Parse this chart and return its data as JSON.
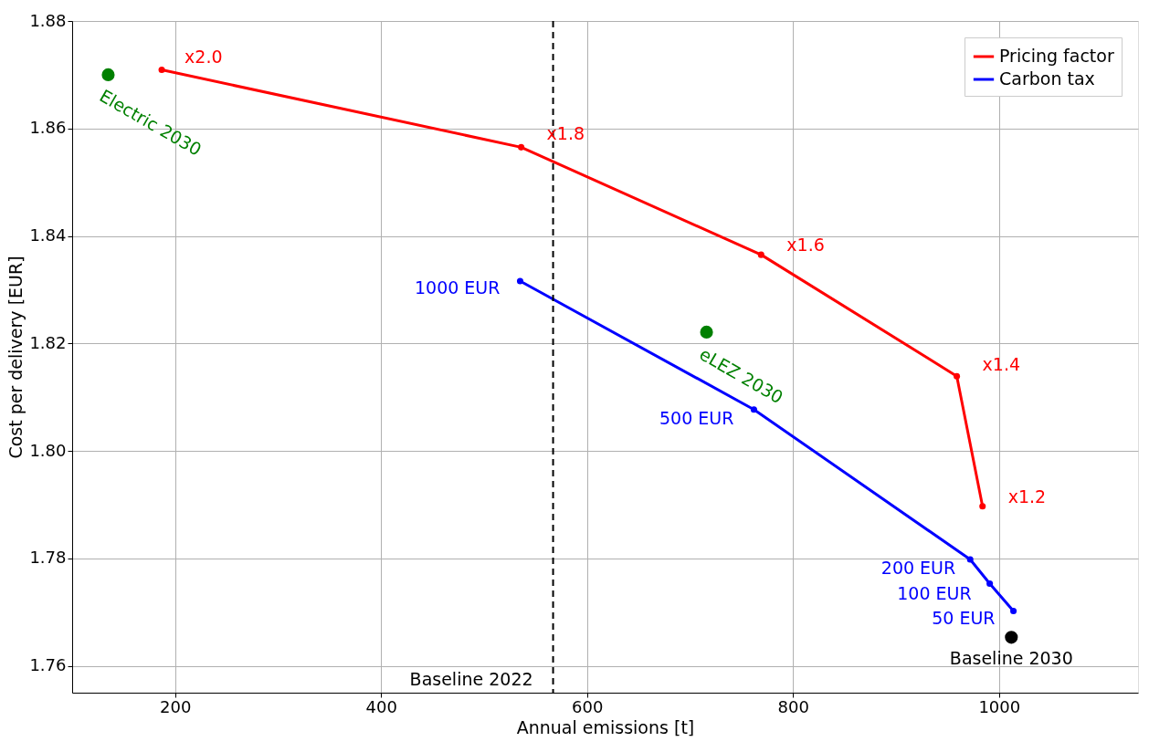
{
  "chart_data": {
    "type": "line",
    "xlabel": "Annual emissions [t]",
    "ylabel": "Cost per delivery [EUR]",
    "xlim": [
      100,
      1135
    ],
    "ylim": [
      1.755,
      1.88
    ],
    "xticks": [
      200,
      400,
      600,
      800,
      1000
    ],
    "yticks": [
      {
        "value": 1.76,
        "label": "1.76"
      },
      {
        "value": 1.78,
        "label": "1.78"
      },
      {
        "value": 1.8,
        "label": "1.80"
      },
      {
        "value": 1.82,
        "label": "1.82"
      },
      {
        "value": 1.84,
        "label": "1.84"
      },
      {
        "value": 1.86,
        "label": "1.86"
      },
      {
        "value": 1.88,
        "label": "1.88"
      }
    ],
    "grid": true,
    "legend": "top right",
    "marker": "circle",
    "series": [
      {
        "name": "Pricing factor",
        "color": "#ff0000",
        "x": [
          187,
          536,
          769,
          959,
          984
        ],
        "values": [
          1.8709,
          1.8565,
          1.8365,
          1.8139,
          1.7897
        ]
      },
      {
        "name": "Carbon tax",
        "color": "#0000ff",
        "x": [
          535,
          762,
          972,
          991,
          1014
        ],
        "values": [
          1.8316,
          1.8077,
          1.7798,
          1.7753,
          1.7702
        ]
      },
      {
        "color": "#008000",
        "type": "scatter",
        "x": [
          135,
          716
        ],
        "values": [
          1.87,
          1.8221
        ]
      },
      {
        "color": "#000000",
        "type": "scatter",
        "x": [
          1012
        ],
        "values": [
          1.7653
        ]
      }
    ],
    "ref_lines": [
      {
        "axis": "x",
        "value": 567,
        "label": "Baseline 2022",
        "color": "#000000",
        "line_style": "dashed"
      }
    ],
    "annotations": [
      {
        "text": "x2.0",
        "x": 187,
        "y": 1.8709
      },
      {
        "text": "x1.8",
        "x": 536,
        "y": 1.8565
      },
      {
        "text": "x1.6",
        "x": 769,
        "y": 1.8365
      },
      {
        "text": "x1.4",
        "x": 959,
        "y": 1.8139
      },
      {
        "text": "x1.2",
        "x": 984,
        "y": 1.7897
      },
      {
        "text": "1000 EUR",
        "x": 535,
        "y": 1.8316
      },
      {
        "text": "500 EUR",
        "x": 762,
        "y": 1.8077
      },
      {
        "text": "200 EUR",
        "x": 972,
        "y": 1.7798
      },
      {
        "text": "100 EUR",
        "x": 991,
        "y": 1.7753
      },
      {
        "text": "50 EUR",
        "x": 1014,
        "y": 1.7702
      },
      {
        "text": "Electric 2030",
        "x": 135,
        "y": 1.87
      },
      {
        "text": "eLEZ 2030",
        "x": 716,
        "y": 1.8221
      },
      {
        "text": "Baseline 2030",
        "x": 1012,
        "y": 1.7653
      }
    ]
  }
}
